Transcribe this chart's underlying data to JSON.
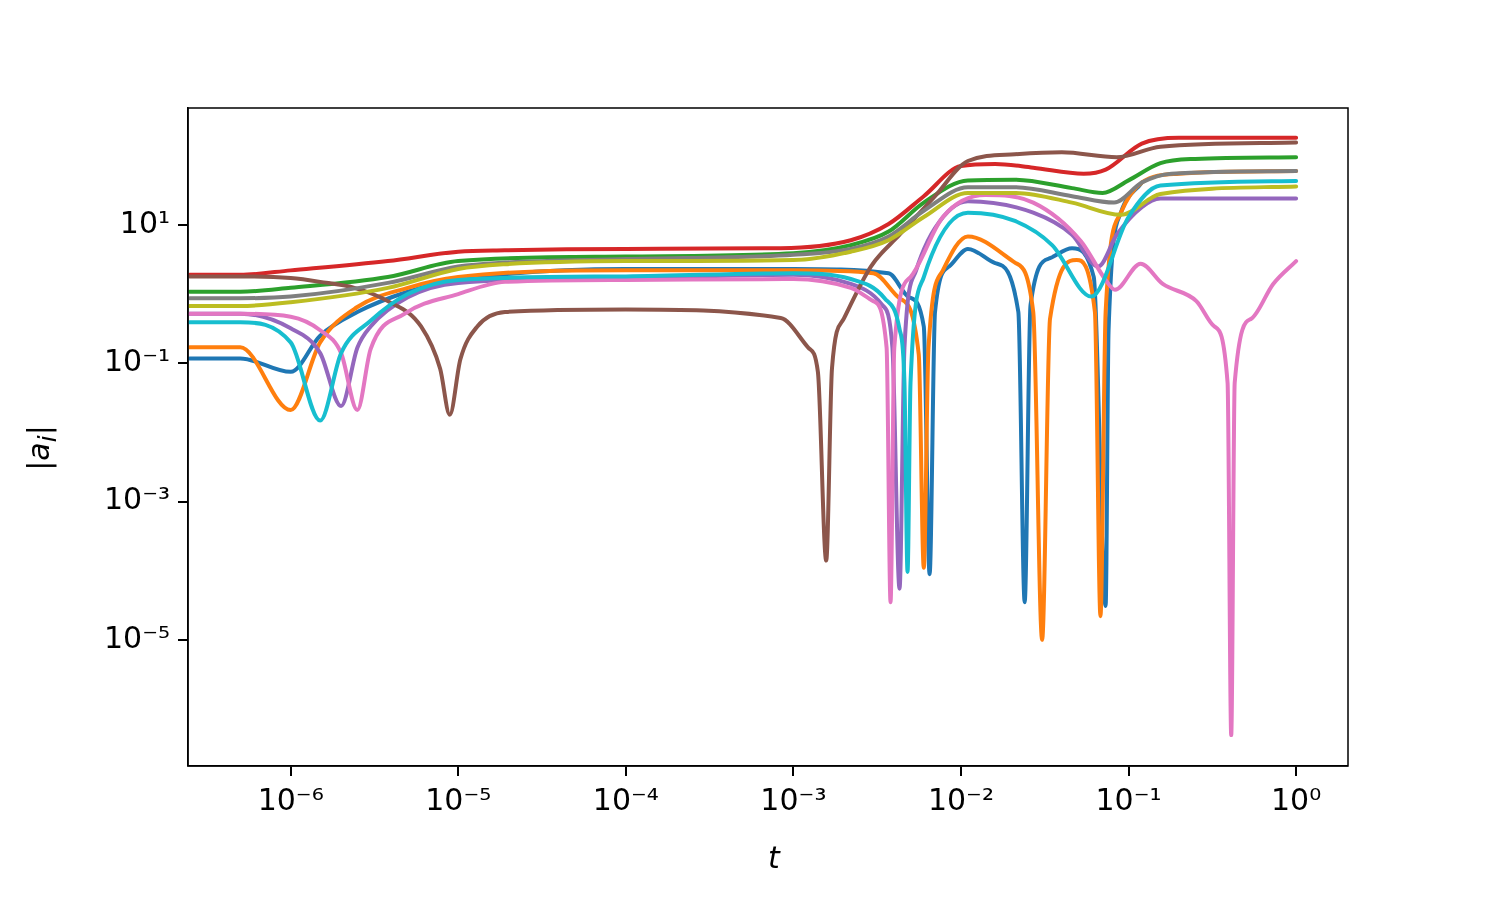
{
  "chart_data": {
    "type": "line",
    "xlabel": "t",
    "ylabel": "|a$_{i}$|",
    "log": "xy",
    "xlim": [
      2.44e-07,
      2.04
    ],
    "ylim": [
      1.5e-07,
      490
    ],
    "xticks": [
      {
        "value": 1e-06,
        "label": "10⁻⁶"
      },
      {
        "value": 1e-05,
        "label": "10⁻⁵"
      },
      {
        "value": 0.0001,
        "label": "10⁻⁴"
      },
      {
        "value": 0.001,
        "label": "10⁻³"
      },
      {
        "value": 0.01,
        "label": "10⁻²"
      },
      {
        "value": 0.1,
        "label": "10⁻¹"
      },
      {
        "value": 1,
        "label": "10⁰"
      }
    ],
    "yticks": [
      {
        "value": 1e-05,
        "label": "10⁻⁵"
      },
      {
        "value": 0.001,
        "label": "10⁻³"
      },
      {
        "value": 0.1,
        "label": "10⁻¹"
      },
      {
        "value": 10,
        "label": "10¹"
      }
    ],
    "series": [
      {
        "color": "#1f77b4",
        "x": [
          2.5e-07,
          5e-07,
          1e-06,
          1.5e-06,
          2.5e-06,
          5e-06,
          1e-05,
          0.0001,
          0.001,
          0.0037,
          0.0049,
          0.006,
          0.0065,
          0.007,
          0.0085,
          0.011,
          0.016,
          0.022,
          0.024,
          0.026,
          0.034,
          0.046,
          0.062,
          0.073,
          0.076,
          0.09,
          0.12
        ],
        "values": [
          0.117,
          0.117,
          0.075,
          0.25,
          0.55,
          1.08,
          1.6,
          2.3,
          2.3,
          2.0,
          0.9,
          0.34,
          8.9e-05,
          0.55,
          2.5,
          4.5,
          2.8,
          0.55,
          3.5e-05,
          0.69,
          3.3,
          4.6,
          1.76,
          3.1e-05,
          0.3,
          15,
          41
        ]
      },
      {
        "color": "#ff7f0e",
        "x": [
          2.5e-07,
          5e-07,
          1e-06,
          1.5e-06,
          2.5e-06,
          5e-06,
          1e-05,
          0.0001,
          0.001,
          0.003,
          0.0043,
          0.0056,
          0.006,
          0.0064,
          0.0078,
          0.011,
          0.021,
          0.027,
          0.0305,
          0.034,
          0.049,
          0.063,
          0.068,
          0.073,
          0.09,
          0.12,
          0.2,
          1
        ],
        "values": [
          0.17,
          0.17,
          0.021,
          0.2,
          0.65,
          1.23,
          1.76,
          2.2,
          2.2,
          2.0,
          0.87,
          0.134,
          0.00011,
          0.167,
          2.2,
          6.8,
          2.85,
          0.55,
          1e-05,
          0.44,
          3.1,
          0.55,
          2.2e-05,
          0.55,
          15,
          41,
          55,
          60
        ]
      },
      {
        "color": "#2ca02c",
        "x": [
          2.5e-07,
          5e-07,
          1e-06,
          3.8e-06,
          1e-05,
          0.0001,
          0.001,
          0.0022,
          0.0037,
          0.006,
          0.011,
          0.021,
          0.046,
          0.07,
          0.1,
          0.155,
          0.25,
          1
        ],
        "values": [
          1.08,
          1.08,
          1.23,
          1.76,
          3.0,
          3.5,
          3.9,
          5.1,
          8,
          21,
          44,
          45,
          34,
          29,
          44,
          78,
          90,
          95
        ]
      },
      {
        "color": "#d62728",
        "x": [
          2.5e-07,
          5e-07,
          1e-06,
          3.8e-06,
          1e-05,
          1.9e-05,
          0.0001,
          0.00084,
          0.0022,
          0.0037,
          0.006,
          0.01,
          0.016,
          0.027,
          0.054,
          0.073,
          0.12,
          0.2,
          1
        ],
        "values": [
          1.9,
          1.9,
          2.2,
          3.0,
          4.1,
          4.3,
          4.5,
          4.6,
          6.0,
          10.3,
          26,
          71,
          76,
          67,
          55,
          63,
          150,
          182,
          182
        ]
      },
      {
        "color": "#9467bd",
        "x": [
          2.5e-07,
          5e-07,
          1e-06,
          1.5e-06,
          2e-06,
          2.5e-06,
          3e-06,
          5e-06,
          1e-05,
          0.0001,
          0.001,
          0.0022,
          0.0034,
          0.0039,
          0.0043,
          0.0046,
          0.0054,
          0.007,
          0.011,
          0.027,
          0.046,
          0.066,
          0.085,
          0.12,
          0.155,
          1
        ],
        "values": [
          0.52,
          0.52,
          0.32,
          0.14,
          0.024,
          0.167,
          0.34,
          0.9,
          1.45,
          1.7,
          1.9,
          1.4,
          0.69,
          0.167,
          5.5e-05,
          0.167,
          2.2,
          9,
          22,
          15,
          7.2,
          2.5,
          7.2,
          18,
          24,
          24
        ]
      },
      {
        "color": "#8c564b",
        "x": [
          2.5e-07,
          5e-07,
          1e-06,
          1.5e-06,
          2.4e-06,
          3.8e-06,
          6e-06,
          7.8e-06,
          8.9e-06,
          1.03e-05,
          1.3e-05,
          1.9e-05,
          0.0001,
          0.00084,
          0.00123,
          0.0014,
          0.00157,
          0.0017,
          0.002,
          0.0029,
          0.0043,
          0.007,
          0.011,
          0.021,
          0.04,
          0.085,
          0.155,
          1
        ],
        "values": [
          1.8,
          1.8,
          1.7,
          1.5,
          1.23,
          0.79,
          0.34,
          0.083,
          0.018,
          0.114,
          0.34,
          0.55,
          0.6,
          0.45,
          0.167,
          0.075,
          0.00014,
          0.085,
          0.44,
          2.5,
          7.2,
          26,
          84,
          105,
          112,
          95,
          135,
          155
        ]
      },
      {
        "color": "#e377c2",
        "x": [
          2.5e-07,
          5e-07,
          1e-06,
          1.5e-06,
          2e-06,
          2.5e-06,
          3e-06,
          4.8e-06,
          1e-05,
          1.9e-05,
          0.0001,
          0.001,
          0.0022,
          0.003,
          0.0036,
          0.0038,
          0.004,
          0.005,
          0.0078,
          0.014,
          0.027,
          0.052,
          0.073,
          0.083,
          0.118,
          0.16,
          0.254,
          0.325,
          0.39,
          0.41,
          0.43,
          0.54,
          0.73,
          1
        ],
        "values": [
          0.52,
          0.52,
          0.47,
          0.3,
          0.14,
          0.021,
          0.16,
          0.52,
          1.0,
          1.5,
          1.6,
          1.65,
          1.23,
          0.79,
          0.167,
          3.5e-05,
          0.167,
          1.76,
          13,
          27,
          21,
          5.8,
          1.6,
          1.15,
          2.75,
          1.4,
          0.79,
          0.34,
          0.052,
          4.2e-07,
          0.052,
          0.44,
          1.4,
          3.0
        ]
      },
      {
        "color": "#7f7f7f",
        "x": [
          2.5e-07,
          5e-07,
          1e-06,
          3.8e-06,
          1e-05,
          1.9e-05,
          0.0001,
          0.001,
          0.0022,
          0.0037,
          0.006,
          0.011,
          0.021,
          0.046,
          0.082,
          0.12,
          0.18,
          1
        ],
        "values": [
          0.87,
          0.87,
          0.92,
          1.45,
          2.5,
          2.85,
          3.2,
          3.7,
          4.5,
          6.8,
          16,
          35,
          35,
          26,
          21,
          41,
          55,
          60
        ]
      },
      {
        "color": "#bcbd22",
        "x": [
          2.5e-07,
          5e-07,
          1e-06,
          3.8e-06,
          1e-05,
          1.9e-05,
          0.0001,
          0.001,
          0.0022,
          0.0037,
          0.006,
          0.011,
          0.021,
          0.046,
          0.09,
          0.155,
          1
        ],
        "values": [
          0.67,
          0.67,
          0.76,
          1.23,
          2.3,
          2.7,
          3.0,
          3.1,
          4.1,
          6.0,
          13,
          29,
          29,
          21,
          14,
          28,
          36
        ]
      },
      {
        "color": "#17becf",
        "x": [
          2.5e-07,
          5e-07,
          1e-06,
          1.5e-06,
          2e-06,
          3e-06,
          5e-06,
          1e-05,
          0.0001,
          0.001,
          0.0022,
          0.0035,
          0.0043,
          0.0046,
          0.0048,
          0.005,
          0.006,
          0.011,
          0.021,
          0.035,
          0.06,
          0.1,
          0.155,
          1
        ],
        "values": [
          0.39,
          0.39,
          0.2,
          0.0148,
          0.14,
          0.41,
          1.0,
          1.6,
          1.8,
          2.0,
          1.65,
          0.87,
          0.31,
          0.052,
          9.6e-05,
          0.052,
          1.76,
          15,
          11.4,
          5.1,
          0.92,
          13,
          37,
          43
        ]
      }
    ]
  }
}
